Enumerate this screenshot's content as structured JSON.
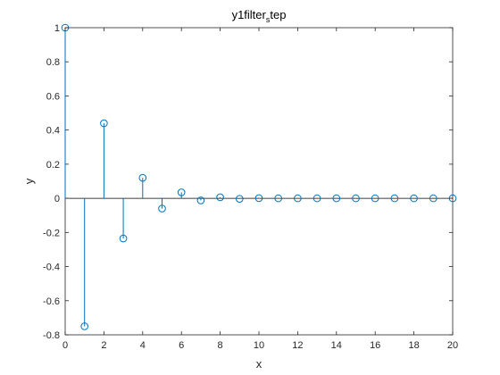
{
  "chart_data": {
    "type": "stem",
    "title_main": "y1filter",
    "title_sub": "s",
    "title_rest": "tep",
    "xlabel": "x",
    "ylabel": "y",
    "xlim": [
      0,
      20
    ],
    "ylim": [
      -0.8,
      1
    ],
    "x_ticks": [
      0,
      2,
      4,
      6,
      8,
      10,
      12,
      14,
      16,
      18,
      20
    ],
    "y_ticks": [
      -0.8,
      -0.6,
      -0.4,
      -0.2,
      0,
      0.2,
      0.4,
      0.6,
      0.8,
      1
    ],
    "x_tick_labels": [
      "0",
      "2",
      "4",
      "6",
      "8",
      "10",
      "12",
      "14",
      "16",
      "18",
      "20"
    ],
    "y_tick_labels": [
      "-0.8",
      "-0.6",
      "-0.4",
      "-0.2",
      "0",
      "0.2",
      "0.4",
      "0.6",
      "0.8",
      "1"
    ],
    "grid": false,
    "series_color": "#0072BD",
    "x": [
      0,
      1,
      2,
      3,
      4,
      5,
      6,
      7,
      8,
      9,
      10,
      11,
      12,
      13,
      14,
      15,
      16,
      17,
      18,
      19,
      20
    ],
    "values": [
      1.0,
      -0.75,
      0.44,
      -0.235,
      0.12,
      -0.06,
      0.035,
      -0.012,
      0.006,
      -0.003,
      0.001,
      0,
      0,
      0,
      0,
      0,
      0,
      0,
      0,
      0,
      0
    ]
  }
}
